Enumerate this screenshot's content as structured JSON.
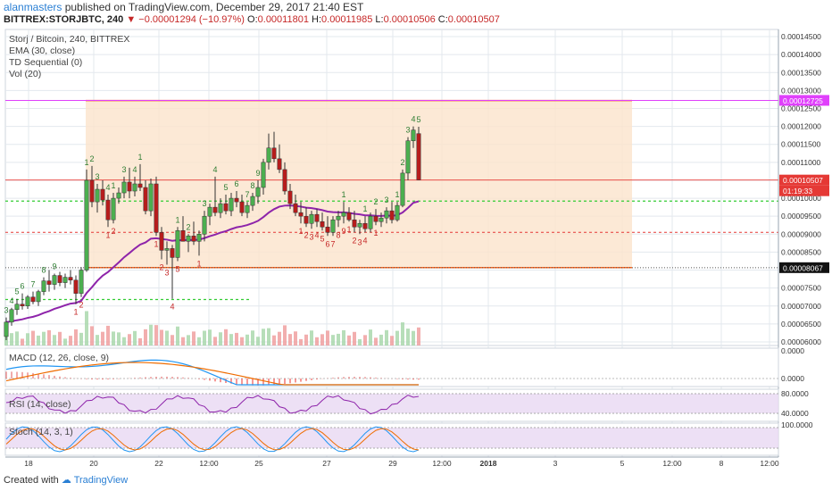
{
  "header": {
    "user": "alanmasters",
    "published": " published on TradingView.com, December 29, 2017 21:40 EST",
    "symbol": "BITTREX:STORJBTC, 240",
    "change": "▼ −0.00001294 (−10.97%)",
    "o_label": "O:",
    "o_val": "0.00011801",
    "h_label": "H:",
    "h_val": "0.00011985",
    "l_label": "L:",
    "l_val": "0.00010506",
    "c_label": "C:",
    "c_val": "0.00010507"
  },
  "legends": {
    "title": "Storj / Bitcoin, 240, BITTREX",
    "ema": "EMA (30, close)",
    "td": "TD Sequential (0)",
    "vol": "Vol (20)",
    "macd": "MACD (12, 26, close, 9)",
    "rsi": "RSI (14, close)",
    "stoch": "Stoch (14, 3, 1)"
  },
  "footer": {
    "created": "Created with",
    "brand": "TradingView"
  },
  "colors": {
    "up": "#4caf50",
    "down": "#b71c1c",
    "ema": "#8e24aa",
    "box_fill": "#fbe3cc",
    "box_edge": "#f26522",
    "magenta": "#e040fb",
    "green_dash": "#33cc33",
    "red_dash": "#e53935",
    "macd": "#2196f3",
    "signal": "#ef6c00",
    "rsi": "#8e24aa",
    "stoch_k": "#2196f3",
    "stoch_d": "#ef6c00"
  },
  "chart_data": {
    "type": "candlestick",
    "title": "Storj / Bitcoin, 240, BITTREX",
    "price_axis": {
      "ticks": [
        "0.00014500",
        "0.00014000",
        "0.00013500",
        "0.00013000",
        "0.00012500",
        "0.00012000",
        "0.00011500",
        "0.00011000",
        "0.00010500",
        "0.00010000",
        "0.00009500",
        "0.00009000",
        "0.00008500",
        "0.00008000",
        "0.00007500",
        "0.00007000",
        "0.00006500",
        "0.00006000"
      ],
      "range": [
        5.9e-05,
        0.000147
      ]
    },
    "price_labels": [
      {
        "text": "0.00012725",
        "value": 0.00012725,
        "color": "magenta"
      },
      {
        "text": "0.00010507",
        "value": 0.00010507,
        "color": "red"
      },
      {
        "text": "01:19:33",
        "value": 0.00010507,
        "color": "red",
        "offset": 1
      },
      {
        "text": "0.00008067",
        "value": 8.067e-05,
        "color": "black"
      }
    ],
    "time_axis": [
      "18",
      "20",
      "22",
      "12:00",
      "25",
      "27",
      "29",
      "12:00",
      "2018",
      "3",
      "5",
      "12:00",
      "8",
      "12:00"
    ],
    "levels": {
      "box_top": 0.0001272,
      "box_bottom": 8.07e-05,
      "green_dash": 9.92e-05,
      "red_dash": 9.05e-05,
      "red_solid": 0.00010507,
      "magenta": 0.00012725,
      "black_dotted": 8.067e-05,
      "green_dash_low": 7.18e-05
    },
    "candles": [
      [
        6.15e-05,
        6.68e-05,
        6.05e-05,
        6.55e-05
      ],
      [
        6.55e-05,
        6.95e-05,
        6.45e-05,
        6.9e-05
      ],
      [
        6.9e-05,
        7.2e-05,
        6.75e-05,
        7.05e-05
      ],
      [
        7.05e-05,
        7.35e-05,
        6.9e-05,
        7e-05
      ],
      [
        7e-05,
        7.3e-05,
        6.92e-05,
        7.25e-05
      ],
      [
        7.25e-05,
        7.4e-05,
        7.05e-05,
        7.12e-05
      ],
      [
        7.12e-05,
        7.45e-05,
        7e-05,
        7.4e-05
      ],
      [
        7.4e-05,
        7.8e-05,
        7.3e-05,
        7.7e-05
      ],
      [
        7.7e-05,
        8e-05,
        7.4e-05,
        7.6e-05
      ],
      [
        7.6e-05,
        7.9e-05,
        7.45e-05,
        7.85e-05
      ],
      [
        7.85e-05,
        7.95e-05,
        7.55e-05,
        7.65e-05
      ],
      [
        7.65e-05,
        7.9e-05,
        7.5e-05,
        7.8e-05
      ],
      [
        7.8e-05,
        8e-05,
        7.6e-05,
        7.72e-05
      ],
      [
        7.72e-05,
        7.85e-05,
        7.05e-05,
        7.35e-05
      ],
      [
        7.35e-05,
        8.08e-05,
        7.25e-05,
        8e-05
      ],
      [
        8e-05,
        0.000108,
        7.95e-05,
        0.000105
      ],
      [
        0.000105,
        0.000109,
        9.75e-05,
        9.9e-05
      ],
      [
        9.9e-05,
        0.000104,
        9.6e-05,
        0.0001025
      ],
      [
        0.0001025,
        0.000105,
        9.8e-05,
        9.95e-05
      ],
      [
        9.95e-05,
        0.000101,
        9.2e-05,
        9.4e-05
      ],
      [
        9.4e-05,
        0.0001015,
        9.3e-05,
        0.0001
      ],
      [
        0.0001,
        0.000103,
        9.85e-05,
        0.0001015
      ],
      [
        0.0001015,
        0.000106,
        0.0001,
        0.0001045
      ],
      [
        0.0001045,
        0.0001085,
        0.0001,
        0.000102
      ],
      [
        0.000102,
        0.000106,
        0.0001005,
        0.000104
      ],
      [
        0.000104,
        0.0001095,
        0.000102,
        0.000103
      ],
      [
        0.000103,
        0.000105,
        9.55e-05,
        9.65e-05
      ],
      [
        9.65e-05,
        0.0001055,
        9.5e-05,
        0.000104
      ],
      [
        0.000104,
        0.000106,
        8.95e-05,
        9.05e-05
      ],
      [
        9.05e-05,
        9.2e-05,
        8.3e-05,
        8.55e-05
      ],
      [
        8.55e-05,
        8.8e-05,
        8.15e-05,
        8.6e-05
      ],
      [
        8.6e-05,
        8.7e-05,
        7.2e-05,
        8.35e-05
      ],
      [
        8.35e-05,
        9.2e-05,
        8.25e-05,
        9.1e-05
      ],
      [
        9.1e-05,
        9.5e-05,
        8.8e-05,
        8.8e-05
      ],
      [
        8.8e-05,
        9e-05,
        8.5e-05,
        8.95e-05
      ],
      [
        8.95e-05,
        9.35e-05,
        8.7e-05,
        8.8e-05
      ],
      [
        8.8e-05,
        9.1e-05,
        8.4e-05,
        9e-05
      ],
      [
        9e-05,
        9.65e-05,
        8.8e-05,
        9.5e-05
      ],
      [
        9.5e-05,
        9.85e-05,
        9.25e-05,
        9.75e-05
      ],
      [
        9.75e-05,
        0.000106,
        9.5e-05,
        9.6e-05
      ],
      [
        9.6e-05,
        0.0001,
        9.45e-05,
        9.85e-05
      ],
      [
        9.85e-05,
        0.000101,
        9.55e-05,
        9.65e-05
      ],
      [
        9.65e-05,
        0.0001015,
        9.5e-05,
        0.0001
      ],
      [
        0.0001,
        0.000102,
        9.75e-05,
        9.9e-05
      ],
      [
        9.9e-05,
        0.000101,
        9.5e-05,
        9.6e-05
      ],
      [
        9.6e-05,
        9.9e-05,
        9.45e-05,
        9.8e-05
      ],
      [
        9.8e-05,
        0.0001015,
        9.65e-05,
        0.0001005
      ],
      [
        0.0001005,
        0.000105,
        9.85e-05,
        0.000103
      ],
      [
        0.000103,
        0.000111,
        0.000101,
        0.00011
      ],
      [
        0.00011,
        0.000118,
        0.000108,
        0.000114
      ],
      [
        0.000114,
        0.0001185,
        0.00011,
        0.000111
      ],
      [
        0.000111,
        0.000115,
        0.000107,
        0.000108
      ],
      [
        0.000108,
        0.00011,
        0.000101,
        0.000102
      ],
      [
        0.000102,
        0.000104,
        9.7e-05,
        9.85e-05
      ],
      [
        9.85e-05,
        0.000101,
        9.5e-05,
        9.6e-05
      ],
      [
        9.6e-05,
        9.9e-05,
        9.3e-05,
        9.5e-05
      ],
      [
        9.5e-05,
        9.75e-05,
        9.2e-05,
        9.3e-05
      ],
      [
        9.3e-05,
        9.65e-05,
        9.15e-05,
        9.55e-05
      ],
      [
        9.55e-05,
        9.7e-05,
        9.2e-05,
        9.35e-05
      ],
      [
        9.35e-05,
        9.6e-05,
        9.1e-05,
        9.2e-05
      ],
      [
        9.2e-05,
        9.5e-05,
        8.95e-05,
        9.05e-05
      ],
      [
        9.05e-05,
        9.5e-05,
        8.95e-05,
        9.4e-05
      ],
      [
        9.4e-05,
        9.65e-05,
        9.2e-05,
        9.5e-05
      ],
      [
        9.5e-05,
        9.9e-05,
        9.3e-05,
        9.6e-05
      ],
      [
        9.6e-05,
        9.75e-05,
        9.35e-05,
        9.4e-05
      ],
      [
        9.4e-05,
        9.65e-05,
        9.05e-05,
        9.2e-05
      ],
      [
        9.2e-05,
        9.4e-05,
        9e-05,
        9.3e-05
      ],
      [
        9.3e-05,
        9.5e-05,
        9.05e-05,
        9.15e-05
      ],
      [
        9.15e-05,
        9.6e-05,
        9.05e-05,
        9.5e-05
      ],
      [
        9.5e-05,
        9.7e-05,
        9.25e-05,
        9.35e-05
      ],
      [
        9.35e-05,
        9.6e-05,
        9.2e-05,
        9.45e-05
      ],
      [
        9.45e-05,
        9.75e-05,
        9.3e-05,
        9.65e-05
      ],
      [
        9.65e-05,
        9.9e-05,
        9.3e-05,
        9.4e-05
      ],
      [
        9.4e-05,
        9.9e-05,
        9.35e-05,
        9.8e-05
      ],
      [
        9.8e-05,
        0.000108,
        9.75e-05,
        0.000107
      ],
      [
        0.000107,
        0.000117,
        0.000105,
        0.000116
      ],
      [
        0.000116,
        0.00012,
        0.000114,
        0.000119
      ],
      [
        0.000118,
        0.0001199,
        0.000105,
        0.0001051
      ]
    ],
    "td_up": [
      {
        "i": 0,
        "n": "3",
        "pos": "above"
      },
      {
        "i": 1,
        "n": "4",
        "pos": "above"
      },
      {
        "i": 2,
        "n": "5",
        "pos": "above"
      },
      {
        "i": 3,
        "n": "6",
        "pos": "above"
      },
      {
        "i": 5,
        "n": "7",
        "pos": "above"
      },
      {
        "i": 7,
        "n": "8",
        "pos": "above"
      },
      {
        "i": 9,
        "n": "9",
        "pos": "above"
      },
      {
        "i": 15,
        "n": "1",
        "pos": "above"
      },
      {
        "i": 16,
        "n": "2",
        "pos": "above"
      },
      {
        "i": 17,
        "n": "3",
        "pos": "above"
      },
      {
        "i": 19,
        "n": "4",
        "pos": "above"
      },
      {
        "i": 20,
        "n": "1",
        "pos": "above"
      },
      {
        "i": 22,
        "n": "3",
        "pos": "above"
      },
      {
        "i": 24,
        "n": "4",
        "pos": "above"
      },
      {
        "i": 25,
        "n": "1",
        "pos": "above"
      },
      {
        "i": 32,
        "n": "1",
        "pos": "above"
      },
      {
        "i": 34,
        "n": "2",
        "pos": "above"
      },
      {
        "i": 37,
        "n": "3",
        "pos": "above"
      },
      {
        "i": 39,
        "n": "4",
        "pos": "above"
      },
      {
        "i": 41,
        "n": "5",
        "pos": "above"
      },
      {
        "i": 43,
        "n": "6",
        "pos": "above"
      },
      {
        "i": 45,
        "n": "7",
        "pos": "above"
      },
      {
        "i": 46,
        "n": "8",
        "pos": "above"
      },
      {
        "i": 47,
        "n": "9",
        "pos": "above"
      },
      {
        "i": 63,
        "n": "1",
        "pos": "above"
      },
      {
        "i": 67,
        "n": "1",
        "pos": "above"
      },
      {
        "i": 69,
        "n": "2",
        "pos": "above"
      },
      {
        "i": 71,
        "n": "3",
        "pos": "above"
      },
      {
        "i": 73,
        "n": "1",
        "pos": "above"
      },
      {
        "i": 74,
        "n": "2",
        "pos": "above"
      },
      {
        "i": 75,
        "n": "3",
        "pos": "above"
      },
      {
        "i": 76,
        "n": "4",
        "pos": "above"
      },
      {
        "i": 77,
        "n": "5",
        "pos": "above"
      }
    ],
    "td_down": [
      {
        "i": 13,
        "n": "1"
      },
      {
        "i": 14,
        "n": "2"
      },
      {
        "i": 19,
        "n": "1"
      },
      {
        "i": 20,
        "n": "2"
      },
      {
        "i": 28,
        "n": "1"
      },
      {
        "i": 29,
        "n": "2"
      },
      {
        "i": 30,
        "n": "3"
      },
      {
        "i": 31,
        "n": "4"
      },
      {
        "i": 32,
        "n": "5"
      },
      {
        "i": 36,
        "n": "1"
      },
      {
        "i": 55,
        "n": "1"
      },
      {
        "i": 56,
        "n": "2"
      },
      {
        "i": 57,
        "n": "3"
      },
      {
        "i": 58,
        "n": "4"
      },
      {
        "i": 59,
        "n": "5"
      },
      {
        "i": 60,
        "n": "6"
      },
      {
        "i": 61,
        "n": "7"
      },
      {
        "i": 62,
        "n": "8"
      },
      {
        "i": 63,
        "n": "9"
      },
      {
        "i": 64,
        "n": "1"
      },
      {
        "i": 65,
        "n": "2"
      },
      {
        "i": 66,
        "n": "3"
      },
      {
        "i": 67,
        "n": "4"
      },
      {
        "i": 69,
        "n": "1"
      }
    ],
    "macd_axis": [
      "0.0000"
    ],
    "rsi_axis": [
      "80.0000",
      "40.0000"
    ],
    "stoch_axis": [
      "100.0000"
    ]
  }
}
